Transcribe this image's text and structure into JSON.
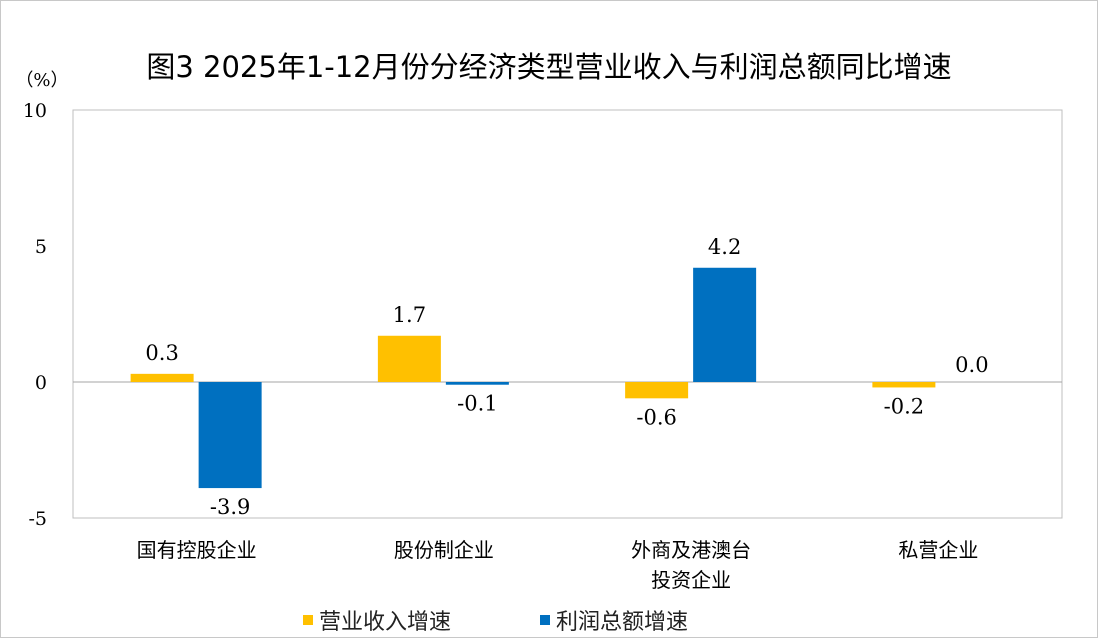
{
  "chart_data": {
    "type": "bar",
    "title": "图3 2025年1-12月份分经济类型营业收入与利润总额同比增速",
    "ylabel": "（%）",
    "ylim": [
      -5,
      10
    ],
    "yticks": [
      10,
      5,
      0,
      -5
    ],
    "grid": false,
    "legend_position": "bottom",
    "categories": [
      "国有控股企业",
      "股份制企业",
      "外商及港澳台\n投资企业",
      "私营企业"
    ],
    "series": [
      {
        "name": "营业收入增速",
        "color": "#FFC000",
        "values": [
          0.3,
          1.7,
          -0.6,
          -0.2
        ],
        "labels": [
          "0.3",
          "1.7",
          "-0.6",
          "-0.2"
        ]
      },
      {
        "name": "利润总额增速",
        "color": "#0070C0",
        "values": [
          -3.9,
          -0.1,
          4.2,
          0.0
        ],
        "labels": [
          "-3.9",
          "-0.1",
          "4.2",
          "0.0"
        ]
      }
    ]
  }
}
